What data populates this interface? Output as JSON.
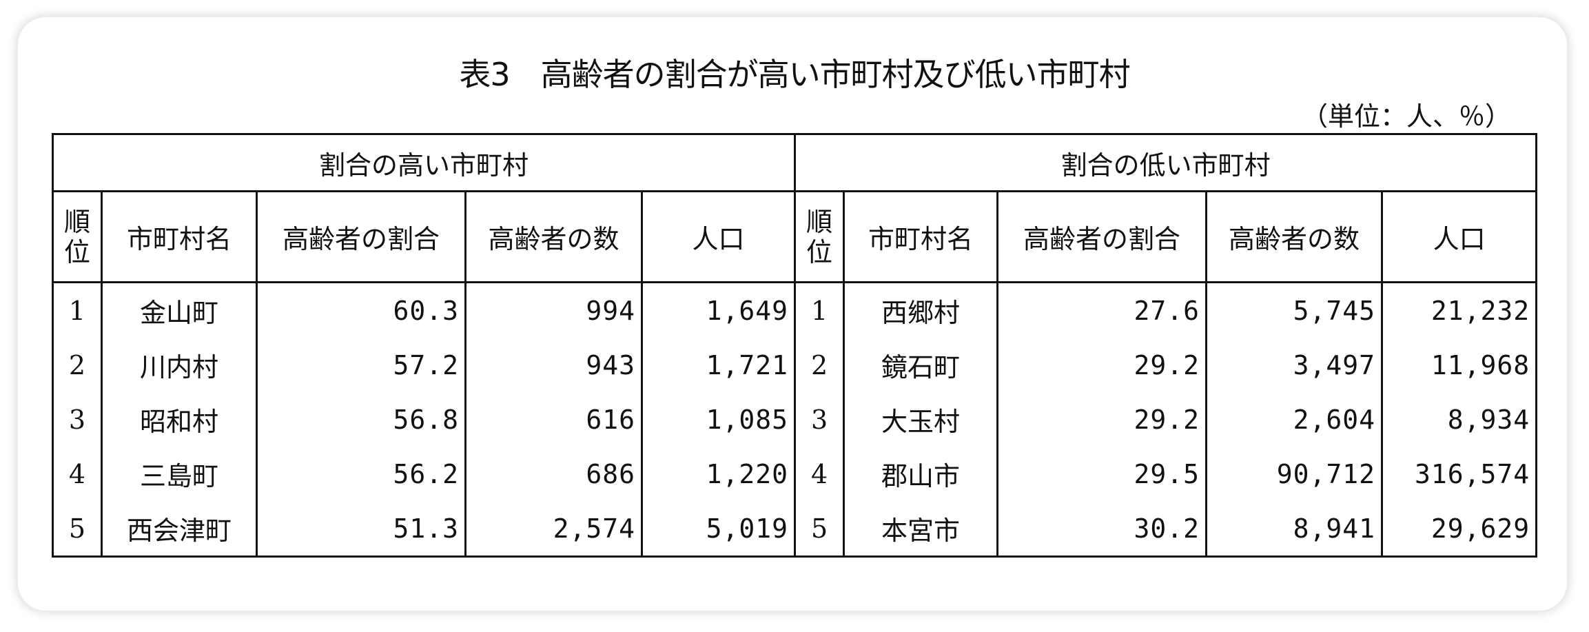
{
  "title": "表3　高齢者の割合が高い市町村及び低い市町村",
  "unit": "（単位：人、％）",
  "high": {
    "group_label": "割合の高い市町村",
    "headers": [
      "順位",
      "市町村名",
      "高齢者の割合",
      "高齢者の数",
      "人口"
    ],
    "rows": [
      {
        "rank": "1",
        "name": "金山町",
        "ratio": "60.3",
        "elderly": "994",
        "population": "1,649"
      },
      {
        "rank": "2",
        "name": "川内村",
        "ratio": "57.2",
        "elderly": "943",
        "population": "1,721"
      },
      {
        "rank": "3",
        "name": "昭和村",
        "ratio": "56.8",
        "elderly": "616",
        "population": "1,085"
      },
      {
        "rank": "4",
        "name": "三島町",
        "ratio": "56.2",
        "elderly": "686",
        "population": "1,220"
      },
      {
        "rank": "5",
        "name": "西会津町",
        "ratio": "51.3",
        "elderly": "2,574",
        "population": "5,019"
      }
    ]
  },
  "low": {
    "group_label": "割合の低い市町村",
    "headers": [
      "順位",
      "市町村名",
      "高齢者の割合",
      "高齢者の数",
      "人口"
    ],
    "rows": [
      {
        "rank": "1",
        "name": "西郷村",
        "ratio": "27.6",
        "elderly": "5,745",
        "population": "21,232"
      },
      {
        "rank": "2",
        "name": "鏡石町",
        "ratio": "29.2",
        "elderly": "3,497",
        "population": "11,968"
      },
      {
        "rank": "3",
        "name": "大玉村",
        "ratio": "29.2",
        "elderly": "2,604",
        "population": "8,934"
      },
      {
        "rank": "4",
        "name": "郡山市",
        "ratio": "29.5",
        "elderly": "90,712",
        "population": "316,574"
      },
      {
        "rank": "5",
        "name": "本宮市",
        "ratio": "30.2",
        "elderly": "8,941",
        "population": "29,629"
      }
    ]
  }
}
